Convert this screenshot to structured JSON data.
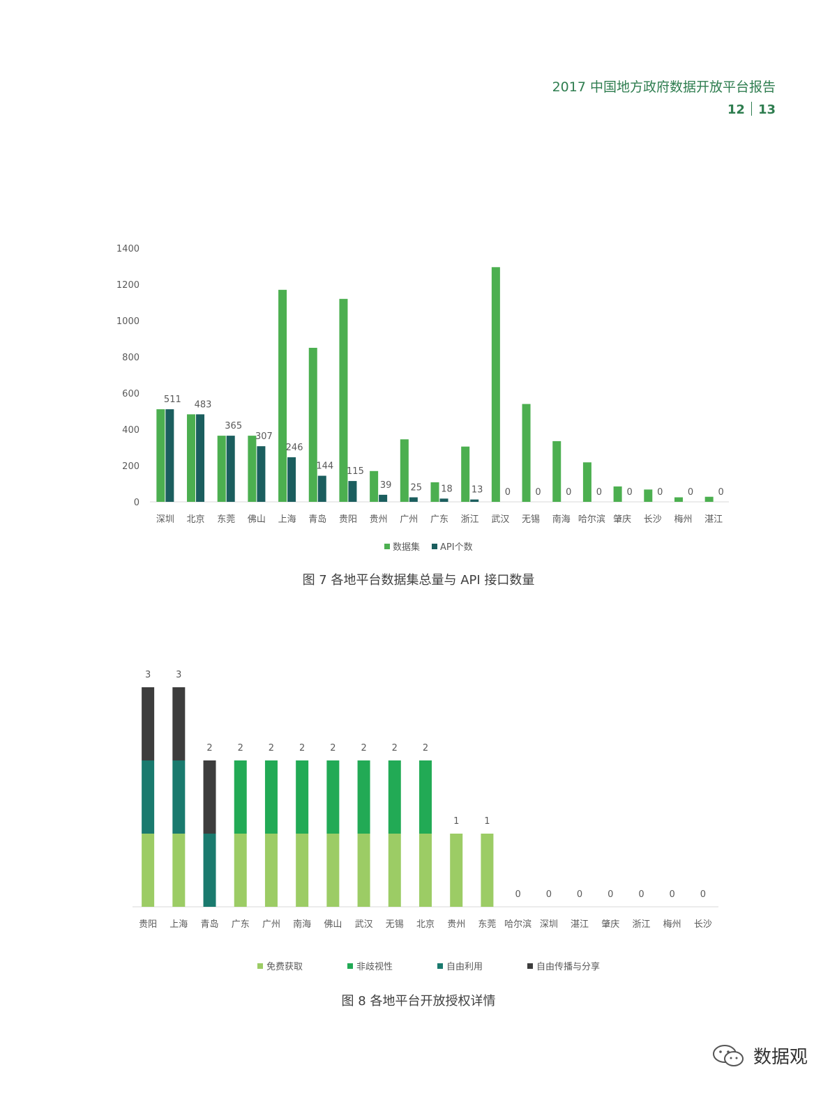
{
  "header": {
    "title": "2017 中国地方政府数据开放平台报告",
    "page_left": "12",
    "page_right": "13"
  },
  "colors": {
    "green": "#4caf50",
    "dark_teal": "#1b5e5e",
    "light_green": "#9ccc65",
    "mid_green": "#22aa55",
    "teal": "#1a7a6e",
    "dark_gray": "#3d3d3d",
    "header_green": "#2e7d4f"
  },
  "charts": [
    {
      "id": "fig7",
      "caption": "图 7 各地平台数据集总量与 API 接口数量",
      "chart_data": {
        "type": "bar",
        "categories": [
          "深圳",
          "北京",
          "东莞",
          "佛山",
          "上海",
          "青岛",
          "贵阳",
          "贵州",
          "广州",
          "广东",
          "浙江",
          "武汉",
          "无锡",
          "南海",
          "哈尔滨",
          "肇庆",
          "长沙",
          "梅州",
          "湛江"
        ],
        "series": [
          {
            "name": "数据集",
            "values": [
              511,
              483,
              365,
              365,
              1170,
              850,
              1120,
              170,
              345,
              108,
              305,
              1295,
              540,
              335,
              218,
              85,
              68,
              25,
              28
            ],
            "data_labels": false
          },
          {
            "name": "API个数",
            "values": [
              511,
              483,
              365,
              307,
              246,
              144,
              115,
              39,
              25,
              18,
              13,
              0,
              0,
              0,
              0,
              0,
              0,
              0,
              0
            ],
            "data_labels": true
          }
        ],
        "ylim": [
          0,
          1400
        ],
        "yticks": [
          0,
          200,
          400,
          600,
          800,
          1000,
          1200,
          1400
        ],
        "grid": false,
        "legend": "bottom"
      }
    },
    {
      "id": "fig8",
      "caption": "图 8 各地平台开放授权详情",
      "chart_data": {
        "type": "bar",
        "stacked": true,
        "categories": [
          "贵阳",
          "上海",
          "青岛",
          "广东",
          "广州",
          "南海",
          "佛山",
          "武汉",
          "无锡",
          "北京",
          "贵州",
          "东莞",
          "哈尔滨",
          "深圳",
          "湛江",
          "肇庆",
          "浙江",
          "梅州",
          "长沙"
        ],
        "series": [
          {
            "name": "免费获取",
            "values": [
              1,
              1,
              0,
              1,
              1,
              1,
              1,
              1,
              1,
              1,
              1,
              1,
              0,
              0,
              0,
              0,
              0,
              0,
              0
            ]
          },
          {
            "name": "非歧视性",
            "values": [
              0,
              0,
              0,
              1,
              1,
              1,
              1,
              1,
              1,
              1,
              0,
              0,
              0,
              0,
              0,
              0,
              0,
              0,
              0
            ]
          },
          {
            "name": "自由利用",
            "values": [
              1,
              1,
              1,
              0,
              0,
              0,
              0,
              0,
              0,
              0,
              0,
              0,
              0,
              0,
              0,
              0,
              0,
              0,
              0
            ]
          },
          {
            "name": "自由传播与分享",
            "values": [
              1,
              1,
              1,
              0,
              0,
              0,
              0,
              0,
              0,
              0,
              0,
              0,
              0,
              0,
              0,
              0,
              0,
              0,
              0
            ]
          }
        ],
        "totals": [
          3,
          3,
          2,
          2,
          2,
          2,
          2,
          2,
          2,
          2,
          1,
          1,
          0,
          0,
          0,
          0,
          0,
          0,
          0
        ],
        "ylim": [
          0,
          3
        ],
        "grid": false,
        "legend": "bottom"
      }
    }
  ],
  "watermark": {
    "text": "数据观",
    "icon": "wechat-icon"
  }
}
